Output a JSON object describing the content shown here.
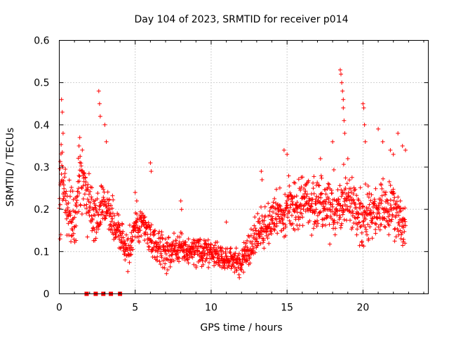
{
  "chart_data": {
    "type": "scatter",
    "title": "Day 104 of 2023, SRMTID for receiver p014",
    "xlabel": "GPS time / hours",
    "ylabel": "SRMTID / TECUs",
    "xlim": [
      0,
      24.3
    ],
    "ylim": [
      0,
      0.6
    ],
    "x_ticks": [
      0,
      5,
      10,
      15,
      20
    ],
    "y_ticks": [
      0,
      0.1,
      0.2,
      0.3,
      0.4,
      0.5,
      0.6
    ],
    "x_tick_labels": [
      "0",
      "5",
      "10",
      "15",
      "20"
    ],
    "y_tick_labels": [
      "0",
      "0.1",
      "0.2",
      "0.3",
      "0.4",
      "0.5",
      "0.6"
    ],
    "grid": true,
    "marker": "+",
    "color": "#ff0000",
    "trend": [
      [
        0.0,
        0.2
      ],
      [
        0.1,
        0.3
      ],
      [
        0.2,
        0.27
      ],
      [
        0.5,
        0.2
      ],
      [
        1.0,
        0.17
      ],
      [
        1.4,
        0.3
      ],
      [
        1.8,
        0.23
      ],
      [
        2.0,
        0.22
      ],
      [
        2.4,
        0.17
      ],
      [
        2.7,
        0.22
      ],
      [
        3.0,
        0.2
      ],
      [
        3.5,
        0.17
      ],
      [
        4.0,
        0.15
      ],
      [
        4.5,
        0.09
      ],
      [
        5.0,
        0.15
      ],
      [
        5.5,
        0.17
      ],
      [
        6.0,
        0.13
      ],
      [
        7.0,
        0.1
      ],
      [
        8.0,
        0.11
      ],
      [
        9.0,
        0.1
      ],
      [
        10.0,
        0.1
      ],
      [
        11.0,
        0.08
      ],
      [
        12.0,
        0.08
      ],
      [
        13.0,
        0.14
      ],
      [
        14.0,
        0.17
      ],
      [
        15.0,
        0.19
      ],
      [
        16.0,
        0.22
      ],
      [
        17.0,
        0.21
      ],
      [
        18.0,
        0.2
      ],
      [
        19.0,
        0.22
      ],
      [
        20.0,
        0.18
      ],
      [
        21.0,
        0.2
      ],
      [
        22.0,
        0.2
      ],
      [
        22.8,
        0.15
      ]
    ],
    "spread": [
      [
        0.0,
        0.07
      ],
      [
        2.0,
        0.07
      ],
      [
        4.5,
        0.04
      ],
      [
        8.0,
        0.035
      ],
      [
        11.0,
        0.025
      ],
      [
        13.0,
        0.045
      ],
      [
        16.0,
        0.06
      ],
      [
        20.0,
        0.06
      ],
      [
        22.8,
        0.06
      ]
    ],
    "spikes": [
      [
        0.15,
        0.46
      ],
      [
        0.2,
        0.43
      ],
      [
        0.25,
        0.38
      ],
      [
        1.3,
        0.35
      ],
      [
        1.35,
        0.37
      ],
      [
        2.6,
        0.48
      ],
      [
        2.65,
        0.45
      ],
      [
        2.7,
        0.42
      ],
      [
        3.0,
        0.4
      ],
      [
        3.1,
        0.36
      ],
      [
        5.0,
        0.24
      ],
      [
        5.1,
        0.22
      ],
      [
        6.0,
        0.31
      ],
      [
        6.05,
        0.29
      ],
      [
        8.0,
        0.22
      ],
      [
        8.05,
        0.2
      ],
      [
        11.0,
        0.17
      ],
      [
        13.3,
        0.29
      ],
      [
        13.35,
        0.27
      ],
      [
        14.8,
        0.34
      ],
      [
        15.0,
        0.33
      ],
      [
        17.2,
        0.32
      ],
      [
        18.5,
        0.53
      ],
      [
        18.55,
        0.52
      ],
      [
        18.6,
        0.5
      ],
      [
        18.65,
        0.48
      ],
      [
        18.7,
        0.46
      ],
      [
        18.7,
        0.44
      ],
      [
        18.75,
        0.41
      ],
      [
        18.8,
        0.38
      ],
      [
        18.0,
        0.36
      ],
      [
        19.0,
        0.32
      ],
      [
        20.0,
        0.45
      ],
      [
        20.05,
        0.44
      ],
      [
        20.1,
        0.4
      ],
      [
        20.15,
        0.36
      ],
      [
        21.0,
        0.39
      ],
      [
        21.3,
        0.36
      ],
      [
        21.8,
        0.34
      ],
      [
        22.0,
        0.33
      ],
      [
        22.3,
        0.38
      ],
      [
        22.6,
        0.35
      ],
      [
        22.8,
        0.34
      ],
      [
        0.05,
        0.13
      ],
      [
        0.1,
        0.14
      ]
    ],
    "zero_markers": [
      1.8,
      2.4,
      2.9,
      3.4,
      4.0
    ],
    "point_count": 1600,
    "seed": 104
  }
}
